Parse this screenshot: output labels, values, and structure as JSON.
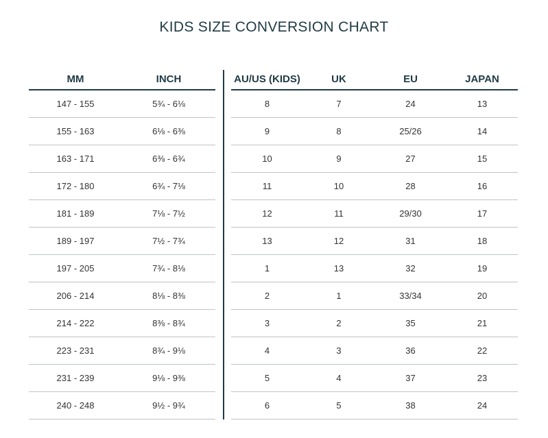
{
  "title": "KIDS SIZE CONVERSION CHART",
  "left_table": {
    "headers": [
      "MM",
      "INCH"
    ],
    "rows": [
      [
        "147 - 155",
        "5¾ - 6⅛"
      ],
      [
        "155 - 163",
        "6⅛ - 6⅜"
      ],
      [
        "163 - 171",
        "6⅜ - 6¾"
      ],
      [
        "172 - 180",
        "6¾ - 7⅛"
      ],
      [
        "181 - 189",
        "7⅛ - 7½"
      ],
      [
        "189 - 197",
        "7½ - 7¾"
      ],
      [
        "197 - 205",
        "7¾ - 8⅛"
      ],
      [
        "206 - 214",
        "8⅛ - 8⅜"
      ],
      [
        "214 - 222",
        "8⅜ - 8¾"
      ],
      [
        "223 - 231",
        "8¾ - 9⅛"
      ],
      [
        "231 - 239",
        "9⅛ - 9⅜"
      ],
      [
        "240 - 248",
        "9½ - 9¾"
      ]
    ]
  },
  "right_table": {
    "headers": [
      "AU/US (KIDS)",
      "UK",
      "EU",
      "JAPAN"
    ],
    "rows": [
      [
        "8",
        "7",
        "24",
        "13"
      ],
      [
        "9",
        "8",
        "25/26",
        "14"
      ],
      [
        "10",
        "9",
        "27",
        "15"
      ],
      [
        "11",
        "10",
        "28",
        "16"
      ],
      [
        "12",
        "11",
        "29/30",
        "17"
      ],
      [
        "13",
        "12",
        "31",
        "18"
      ],
      [
        "1",
        "13",
        "32",
        "19"
      ],
      [
        "2",
        "1",
        "33/34",
        "20"
      ],
      [
        "3",
        "2",
        "35",
        "21"
      ],
      [
        "4",
        "3",
        "36",
        "22"
      ],
      [
        "5",
        "4",
        "37",
        "23"
      ],
      [
        "6",
        "5",
        "38",
        "24"
      ]
    ]
  },
  "colors": {
    "heading": "#1f3a45",
    "rule": "#1f3a45",
    "row_divider": "#bfc3c6",
    "cell_text": "#333333"
  }
}
